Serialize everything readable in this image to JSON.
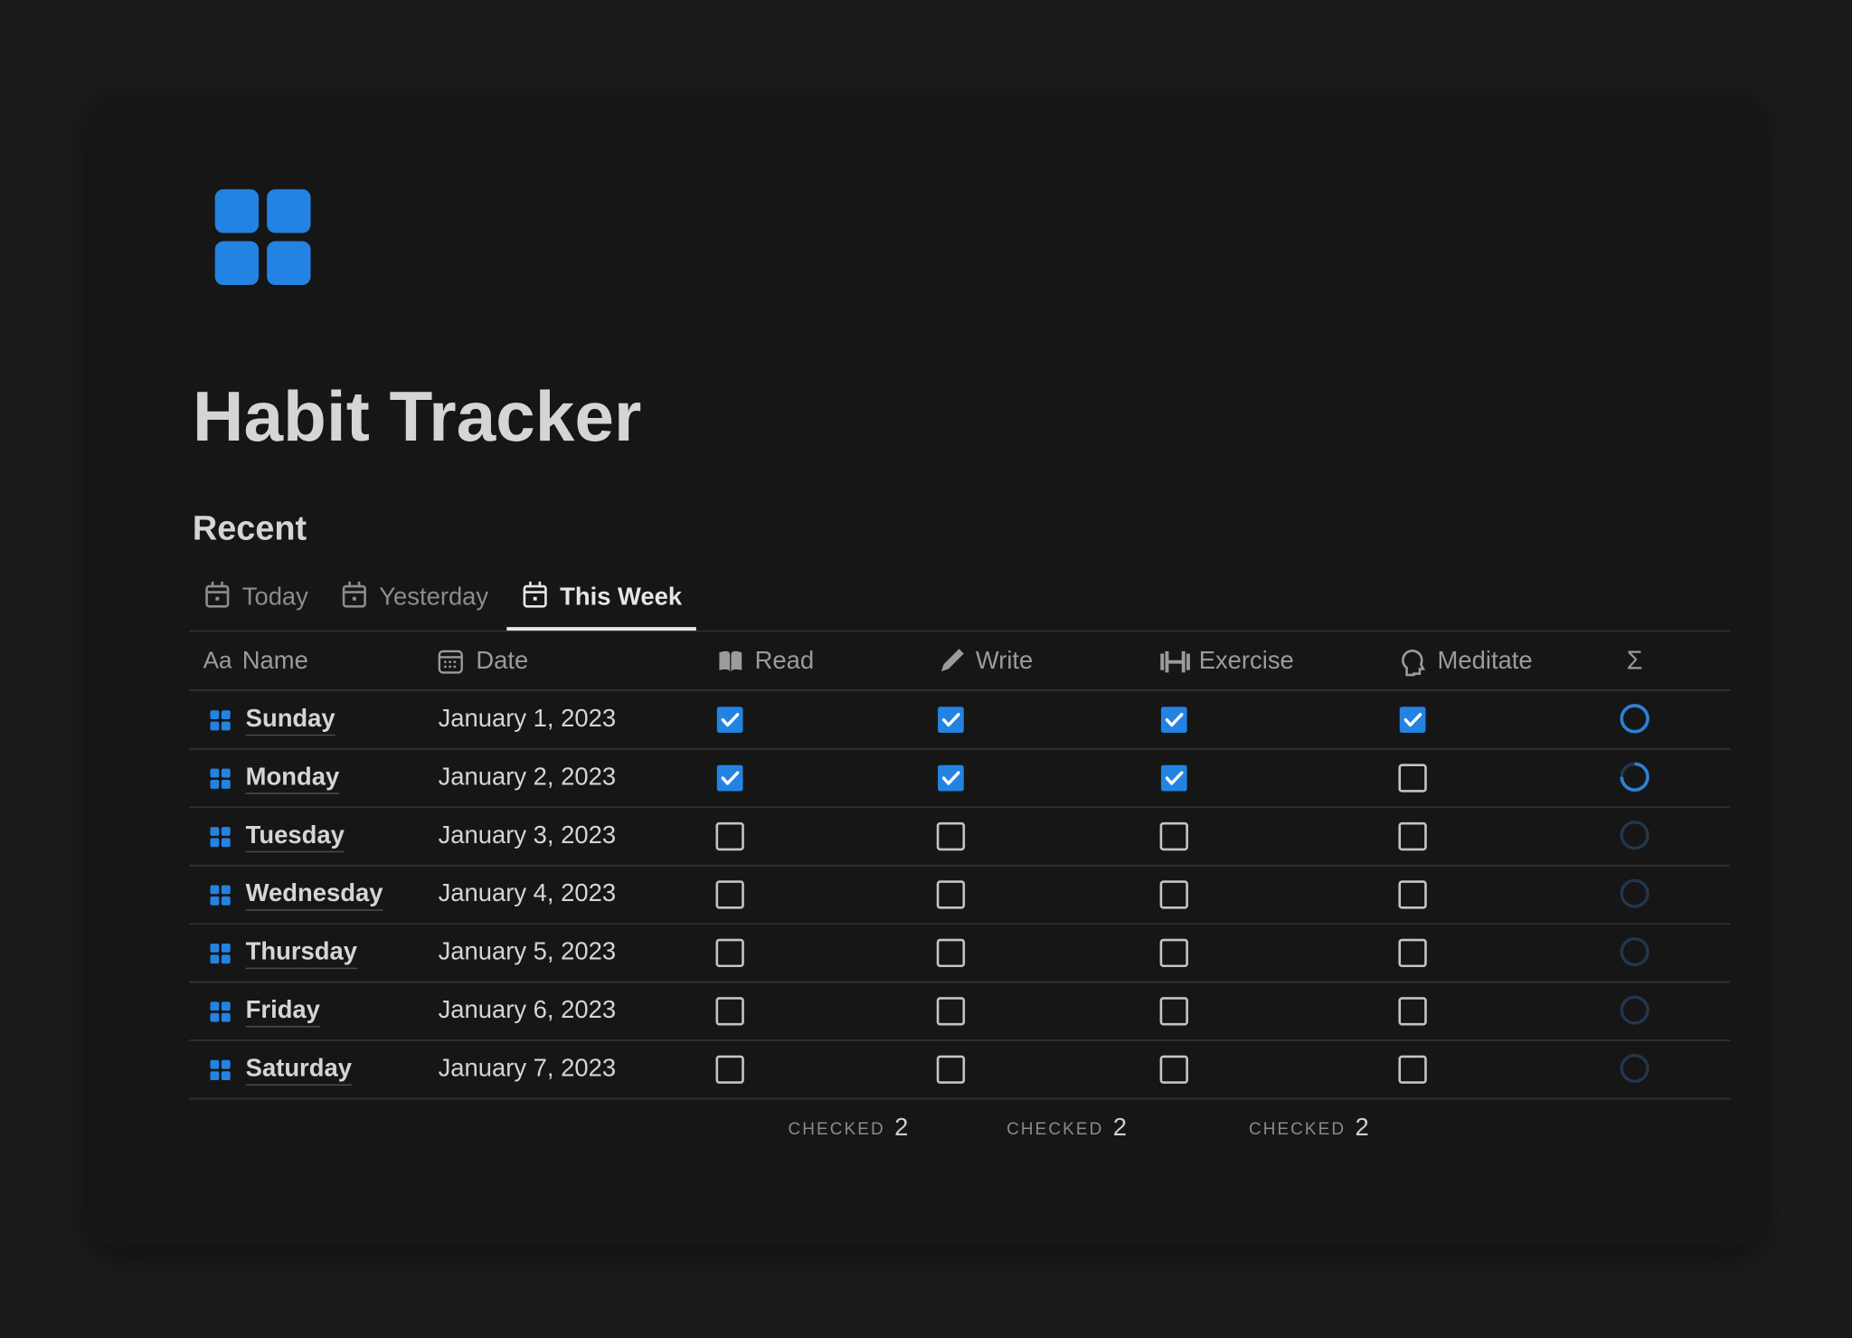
{
  "page": {
    "title": "Habit Tracker",
    "section": "Recent"
  },
  "tabs": {
    "items": [
      "Today",
      "Yesterday",
      "This Week"
    ],
    "active": 2
  },
  "table": {
    "columns": [
      {
        "name": "Name",
        "type_label": "Aa"
      },
      {
        "name": "Date"
      },
      {
        "name": "Read",
        "calculation": {
          "label": "CHECKED",
          "value": 2
        }
      },
      {
        "name": "Write",
        "calculation": {
          "label": "CHECKED",
          "value": 2
        }
      },
      {
        "name": "Exercise",
        "calculation": {
          "label": "CHECKED",
          "value": 2
        }
      },
      {
        "name": "Meditate"
      },
      {
        "name": "Σ"
      }
    ],
    "rows": [
      {
        "name": "Sunday",
        "date": "January 1, 2023",
        "checks": [
          true,
          true,
          true,
          true
        ],
        "progress": 100
      },
      {
        "name": "Monday",
        "date": "January 2, 2023",
        "checks": [
          true,
          true,
          true,
          false
        ],
        "progress": 75
      },
      {
        "name": "Tuesday",
        "date": "January 3, 2023",
        "checks": [
          false,
          false,
          false,
          false
        ],
        "progress": 0
      },
      {
        "name": "Wednesday",
        "date": "January 4, 2023",
        "checks": [
          false,
          false,
          false,
          false
        ],
        "progress": 0
      },
      {
        "name": "Thursday",
        "date": "January 5, 2023",
        "checks": [
          false,
          false,
          false,
          false
        ],
        "progress": 0
      },
      {
        "name": "Friday",
        "date": "January 6, 2023",
        "checks": [
          false,
          false,
          false,
          false
        ],
        "progress": 0
      },
      {
        "name": "Saturday",
        "date": "January 7, 2023",
        "checks": [
          false,
          false,
          false,
          false
        ],
        "progress": 0
      }
    ]
  }
}
